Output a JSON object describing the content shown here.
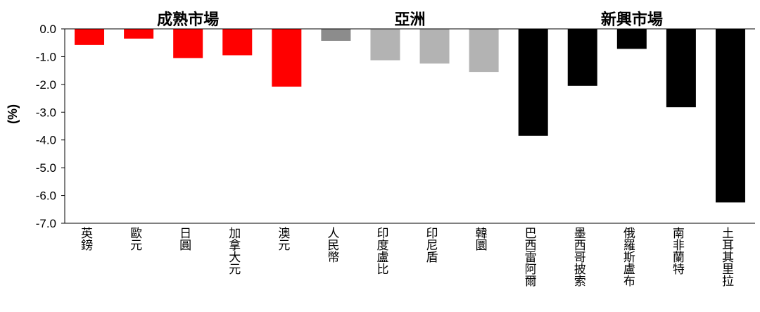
{
  "chart_data": {
    "type": "bar",
    "title": "",
    "xlabel": "",
    "ylabel": "(%)",
    "ylim": [
      -7.0,
      0.0
    ],
    "yticks": [
      0.0,
      -1.0,
      -2.0,
      -3.0,
      -4.0,
      -5.0,
      -6.0,
      -7.0
    ],
    "ytick_labels": [
      "0.0",
      "-1.0",
      "-2.0",
      "-3.0",
      "-4.0",
      "-5.0",
      "-6.0",
      "-7.0"
    ],
    "grid": false,
    "groups": [
      {
        "name": "成熟市場",
        "color": "#ff0000",
        "categories": [
          "英鎊",
          "歐元",
          "日圓",
          "加拿大元",
          "澳元"
        ],
        "values": [
          -0.58,
          -0.35,
          -1.05,
          -0.95,
          -2.08
        ]
      },
      {
        "name": "亞洲",
        "color": "#b3b3b3",
        "categories": [
          "人民幣",
          "印度盧比",
          "印尼盾",
          "韓圜"
        ],
        "values": [
          -0.43,
          -1.13,
          -1.25,
          -1.55
        ],
        "colors": [
          "#8c8c8c",
          "#b3b3b3",
          "#b3b3b3",
          "#b3b3b3"
        ]
      },
      {
        "name": "新興市場",
        "color": "#000000",
        "categories": [
          "巴西雷阿爾",
          "墨西哥披索",
          "俄羅斯盧布",
          "南非蘭特",
          "土耳其里拉"
        ],
        "values": [
          -3.85,
          -2.05,
          -0.72,
          -2.82,
          -6.25
        ]
      }
    ]
  }
}
